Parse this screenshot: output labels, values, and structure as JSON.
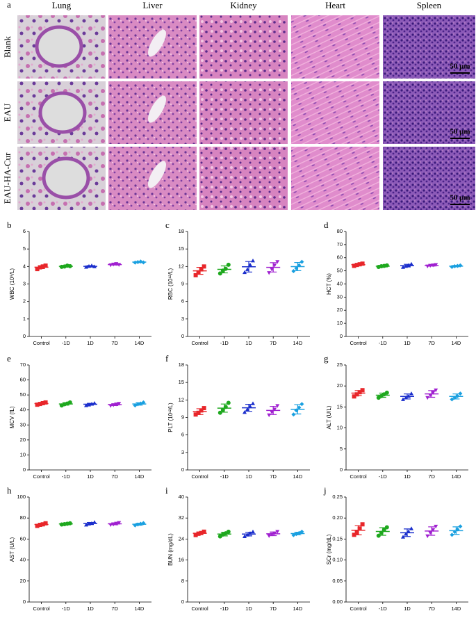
{
  "histology": {
    "label": "a",
    "columns": [
      "Lung",
      "Liver",
      "Kidney",
      "Heart",
      "Spleen"
    ],
    "rows": [
      "Blank",
      "EAU",
      "EAU-HA-Cur"
    ],
    "scale_bars": [
      "50 μm",
      "50 μm",
      "50 μm"
    ]
  },
  "chart_data": [
    {
      "type": "dotplot",
      "panel_label": "b",
      "ylabel": "WBC (10⁹/L)",
      "categories": [
        "Control",
        "-1D",
        "1D",
        "7D",
        "14D"
      ],
      "colors": [
        "#e8262a",
        "#1ea81e",
        "#1a2ecc",
        "#a020d0",
        "#1aa0e0"
      ],
      "markers": [
        "square",
        "circle",
        "triangle",
        "triangle-down",
        "diamond"
      ],
      "ylim": [
        0,
        6
      ],
      "yticks": [
        0,
        1,
        2,
        3,
        4,
        5,
        6
      ],
      "values": [
        3.96,
        4.01,
        4.01,
        4.11,
        4.25
      ],
      "errors": [
        0.08,
        0.03,
        0.04,
        0.03,
        0.03
      ],
      "points": [
        [
          3.85,
          3.95,
          4.0,
          4.05
        ],
        [
          3.98,
          4.0,
          4.05,
          4.02
        ],
        [
          3.97,
          4.02,
          4.05,
          4.0
        ],
        [
          4.08,
          4.12,
          4.15,
          4.1
        ],
        [
          4.22,
          4.25,
          4.28,
          4.23
        ]
      ]
    },
    {
      "type": "dotplot",
      "panel_label": "c",
      "ylabel": "RBC (10¹²/L)",
      "categories": [
        "Control",
        "-1D",
        "1D",
        "7D",
        "14D"
      ],
      "colors": [
        "#e8262a",
        "#1ea81e",
        "#1a2ecc",
        "#a020d0",
        "#1aa0e0"
      ],
      "markers": [
        "square",
        "circle",
        "triangle",
        "triangle-down",
        "diamond"
      ],
      "ylim": [
        0,
        18
      ],
      "yticks": [
        0,
        3,
        6,
        9,
        12,
        15,
        18
      ],
      "values": [
        11.25,
        11.5,
        11.95,
        11.85,
        11.98
      ],
      "errors": [
        0.6,
        0.6,
        0.9,
        0.8,
        0.7
      ],
      "points": [
        [
          10.5,
          11.0,
          11.5,
          12.0
        ],
        [
          10.8,
          11.3,
          11.6,
          12.3
        ],
        [
          11.0,
          11.5,
          12.3,
          13.0
        ],
        [
          10.9,
          11.5,
          12.2,
          12.8
        ],
        [
          11.2,
          11.7,
          12.2,
          12.8
        ]
      ]
    },
    {
      "type": "dotplot",
      "panel_label": "d",
      "ylabel": "HCT (%)",
      "categories": [
        "Control",
        "-1D",
        "1D",
        "7D",
        "14D"
      ],
      "colors": [
        "#e8262a",
        "#1ea81e",
        "#1a2ecc",
        "#a020d0",
        "#1aa0e0"
      ],
      "markers": [
        "square",
        "circle",
        "triangle",
        "triangle-down",
        "diamond"
      ],
      "ylim": [
        0,
        80
      ],
      "yticks": [
        0,
        10,
        20,
        30,
        40,
        50,
        60,
        70,
        80
      ],
      "values": [
        54.7,
        53.6,
        54.0,
        54.1,
        53.6
      ],
      "errors": [
        0.7,
        0.5,
        1.0,
        0.5,
        0.5
      ],
      "points": [
        [
          53.8,
          54.5,
          55.0,
          55.5
        ],
        [
          53,
          53.5,
          53.8,
          54.2
        ],
        [
          52.8,
          53.6,
          54.3,
          55.2
        ],
        [
          53.5,
          54,
          54.3,
          54.6
        ],
        [
          53,
          53.5,
          53.8,
          54.2
        ]
      ]
    },
    {
      "type": "dotplot",
      "panel_label": "e",
      "ylabel": "MCV (fL)",
      "categories": [
        "Control",
        "-1D",
        "1D",
        "7D",
        "14D"
      ],
      "colors": [
        "#e8262a",
        "#1ea81e",
        "#1a2ecc",
        "#a020d0",
        "#1aa0e0"
      ],
      "markers": [
        "square",
        "circle",
        "triangle",
        "triangle-down",
        "diamond"
      ],
      "ylim": [
        0,
        70
      ],
      "yticks": [
        0,
        10,
        20,
        30,
        40,
        50,
        60,
        70
      ],
      "values": [
        44.3,
        44.0,
        43.8,
        43.5,
        44.0
      ],
      "errors": [
        0.6,
        0.8,
        0.6,
        0.6,
        0.8
      ],
      "points": [
        [
          43.5,
          44,
          44.5,
          45
        ],
        [
          43,
          43.8,
          44.3,
          45
        ],
        [
          43,
          43.5,
          44,
          44.5
        ],
        [
          42.8,
          43.3,
          43.8,
          44.2
        ],
        [
          43,
          43.8,
          44.3,
          45
        ]
      ]
    },
    {
      "type": "dotplot",
      "panel_label": "f",
      "ylabel": "PLT (10¹²/L)",
      "categories": [
        "Control",
        "-1D",
        "1D",
        "7D",
        "14D"
      ],
      "colors": [
        "#e8262a",
        "#1ea81e",
        "#1a2ecc",
        "#a020d0",
        "#1aa0e0"
      ],
      "markers": [
        "square",
        "circle",
        "triangle",
        "triangle-down",
        "diamond"
      ],
      "ylim": [
        0,
        18
      ],
      "yticks": [
        0,
        3,
        6,
        9,
        12,
        15,
        18
      ],
      "values": [
        10.0,
        10.6,
        10.65,
        10.2,
        10.4
      ],
      "errors": [
        0.5,
        0.7,
        0.6,
        0.7,
        0.8
      ],
      "points": [
        [
          9.5,
          9.8,
          10.2,
          10.6
        ],
        [
          9.8,
          10.3,
          10.8,
          11.5
        ],
        [
          9.9,
          10.4,
          10.9,
          11.4
        ],
        [
          9.4,
          9.9,
          10.4,
          11.0
        ],
        [
          9.5,
          10.2,
          10.7,
          11.3
        ]
      ]
    },
    {
      "type": "dotplot",
      "panel_label": "g",
      "ylabel": "ALT (U/L)",
      "categories": [
        "Control",
        "-1D",
        "1D",
        "7D",
        "14D"
      ],
      "colors": [
        "#e8262a",
        "#1ea81e",
        "#1a2ecc",
        "#a020d0",
        "#1aa0e0"
      ],
      "markers": [
        "square",
        "circle",
        "triangle",
        "triangle-down",
        "diamond"
      ],
      "ylim": [
        0,
        25
      ],
      "yticks": [
        0,
        5,
        10,
        15,
        20,
        25
      ],
      "values": [
        18.3,
        17.8,
        17.5,
        18.1,
        17.5
      ],
      "errors": [
        0.6,
        0.5,
        0.6,
        0.8,
        0.6
      ],
      "points": [
        [
          17.5,
          18,
          18.5,
          19
        ],
        [
          17.2,
          17.6,
          18,
          18.4
        ],
        [
          16.8,
          17.2,
          17.6,
          18.2
        ],
        [
          17.2,
          17.8,
          18.4,
          19
        ],
        [
          16.8,
          17.2,
          17.6,
          18.2
        ]
      ]
    },
    {
      "type": "dotplot",
      "panel_label": "h",
      "ylabel": "AST (U/L)",
      "categories": [
        "Control",
        "-1D",
        "1D",
        "7D",
        "14D"
      ],
      "colors": [
        "#e8262a",
        "#1ea81e",
        "#1a2ecc",
        "#a020d0",
        "#1aa0e0"
      ],
      "markers": [
        "square",
        "circle",
        "triangle",
        "triangle-down",
        "diamond"
      ],
      "ylim": [
        0,
        100
      ],
      "yticks": [
        0,
        20,
        40,
        60,
        80,
        100
      ],
      "values": [
        73.8,
        74.4,
        74.8,
        74.5,
        74.1
      ],
      "errors": [
        1.0,
        0.5,
        1.0,
        0.9,
        0.9
      ],
      "points": [
        [
          72.5,
          73.5,
          74,
          75
        ],
        [
          73.8,
          74.2,
          74.6,
          75
        ],
        [
          73.5,
          74.5,
          75,
          76
        ],
        [
          73.5,
          74,
          74.8,
          75.5
        ],
        [
          73,
          73.8,
          74.5,
          75.2
        ]
      ]
    },
    {
      "type": "dotplot",
      "panel_label": "i",
      "ylabel": "BUN (mg/dL)",
      "categories": [
        "Control",
        "-1D",
        "1D",
        "7D",
        "14D"
      ],
      "colors": [
        "#e8262a",
        "#1ea81e",
        "#1a2ecc",
        "#a020d0",
        "#1aa0e0"
      ],
      "markers": [
        "square",
        "circle",
        "triangle",
        "triangle-down",
        "diamond"
      ],
      "ylim": [
        0,
        40
      ],
      "yticks": [
        0,
        8,
        16,
        24,
        32,
        40
      ],
      "values": [
        26.2,
        25.9,
        25.9,
        26.0,
        26.1
      ],
      "errors": [
        0.5,
        0.7,
        0.7,
        0.7,
        0.5
      ],
      "points": [
        [
          25.5,
          26,
          26.3,
          26.8
        ],
        [
          25,
          25.7,
          26.2,
          26.8
        ],
        [
          25,
          25.6,
          26.2,
          26.8
        ],
        [
          25.2,
          25.8,
          26.2,
          26.8
        ],
        [
          25.5,
          25.9,
          26.3,
          26.8
        ]
      ]
    },
    {
      "type": "dotplot",
      "panel_label": "j",
      "ylabel": "SCr (mg/dL)",
      "categories": [
        "Control",
        "-1D",
        "1D",
        "7D",
        "14D"
      ],
      "colors": [
        "#e8262a",
        "#1ea81e",
        "#1a2ecc",
        "#a020d0",
        "#1aa0e0"
      ],
      "markers": [
        "square",
        "circle",
        "triangle",
        "triangle-down",
        "diamond"
      ],
      "ylim": [
        0,
        0.25
      ],
      "yticks": [
        {
          "value": 0,
          "label": "0.00"
        },
        {
          "value": 0.05,
          "label": "0.05"
        },
        {
          "value": 0.1,
          "label": "0.10"
        },
        {
          "value": 0.15,
          "label": "0.15"
        },
        {
          "value": 0.2,
          "label": "0.20"
        },
        {
          "value": 0.25,
          "label": "0.25"
        }
      ],
      "values": [
        0.171,
        0.168,
        0.165,
        0.169,
        0.17
      ],
      "errors": [
        0.011,
        0.009,
        0.009,
        0.01,
        0.009
      ],
      "points": [
        [
          0.16,
          0.165,
          0.175,
          0.185
        ],
        [
          0.158,
          0.165,
          0.172,
          0.178
        ],
        [
          0.155,
          0.162,
          0.168,
          0.175
        ],
        [
          0.157,
          0.165,
          0.172,
          0.18
        ],
        [
          0.16,
          0.167,
          0.173,
          0.18
        ]
      ]
    }
  ]
}
